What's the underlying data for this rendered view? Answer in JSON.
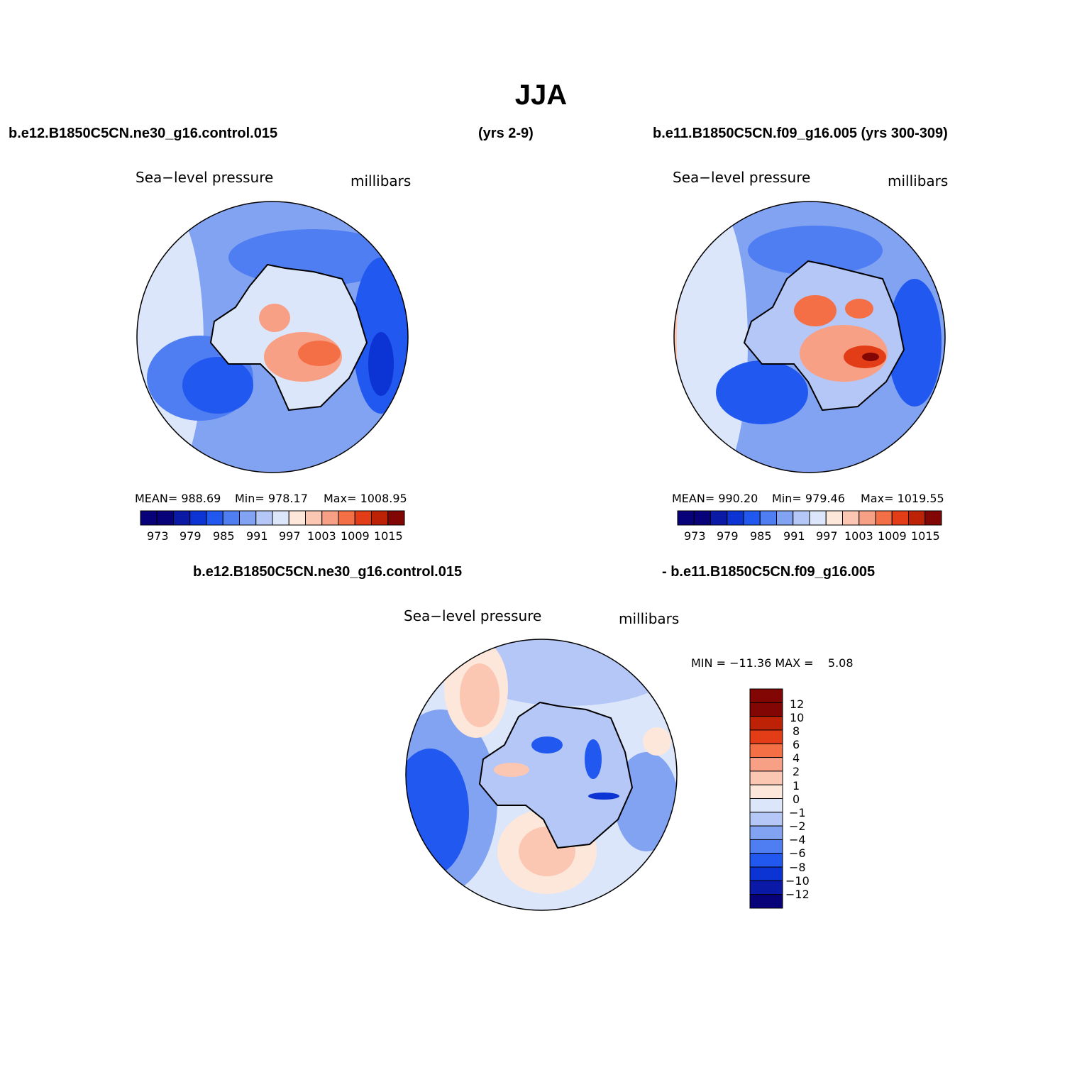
{
  "title": "JJA",
  "case_labels": {
    "left": "b.e12.B1850C5CN.ne30_g16.control.015",
    "left_years": "(yrs 2-9)",
    "right": "b.e11.B1850C5CN.f09_g16.005 (yrs 300-309)",
    "diff_left": "b.e12.B1850C5CN.ne30_g16.control.015",
    "diff_right": "- b.e11.B1850C5CN.f09_g16.005"
  },
  "palettes": {
    "abs": [
      "#07027a",
      "#0a19a6",
      "#0c34d4",
      "#2159f0",
      "#4f7ef2",
      "#82a2f2",
      "#b4c7f6",
      "#dbe6fb",
      "#fde7da",
      "#fbc7b2",
      "#f8a085",
      "#f46f45",
      "#e33d17",
      "#bd2207",
      "#820604"
    ],
    "diff": [
      "#07027a",
      "#0a19a6",
      "#0c34d4",
      "#2159f0",
      "#4f7ef2",
      "#82a2f2",
      "#b4c7f6",
      "#dbe6fb",
      "#fde7da",
      "#fbc7b2",
      "#f8a085",
      "#f46f45",
      "#e33d17",
      "#bd2207",
      "#820604"
    ]
  },
  "chart_data": [
    {
      "type": "heatmap",
      "name": "left-panel",
      "title": "Sea−level pressure",
      "units": "millibars",
      "stats": {
        "mean": "MEAN= 988.69",
        "min": "Min= 978.17",
        "max": "Max= 1008.95"
      },
      "levels": [
        973,
        976,
        979,
        982,
        985,
        988,
        991,
        994,
        997,
        1000,
        1003,
        1006,
        1009,
        1012,
        1015
      ],
      "colorbar_labels": [
        "973",
        "979",
        "985",
        "991",
        "997",
        "1003",
        "1009",
        "1015"
      ]
    },
    {
      "type": "heatmap",
      "name": "right-panel",
      "title": "Sea−level pressure",
      "units": "millibars",
      "stats": {
        "mean": "MEAN= 990.20",
        "min": "Min= 979.46",
        "max": "Max= 1019.55"
      },
      "levels": [
        973,
        976,
        979,
        982,
        985,
        988,
        991,
        994,
        997,
        1000,
        1003,
        1006,
        1009,
        1012,
        1015
      ],
      "colorbar_labels": [
        "973",
        "979",
        "985",
        "991",
        "997",
        "1003",
        "1009",
        "1015"
      ]
    },
    {
      "type": "heatmap",
      "name": "difference-panel",
      "title": "Sea−level pressure",
      "units": "millibars",
      "stats": {
        "minmax": "MIN = −11.36 MAX =    5.08"
      },
      "levels": [
        -12,
        -10,
        -8,
        -6,
        -4,
        -2,
        -1,
        0,
        1,
        2,
        4,
        6,
        8,
        10,
        12
      ],
      "colorbar_labels": [
        "12",
        "10",
        "8",
        "6",
        "4",
        "2",
        "1",
        "0",
        "−1",
        "−2",
        "−4",
        "−6",
        "−8",
        "−10",
        "−12"
      ]
    }
  ]
}
